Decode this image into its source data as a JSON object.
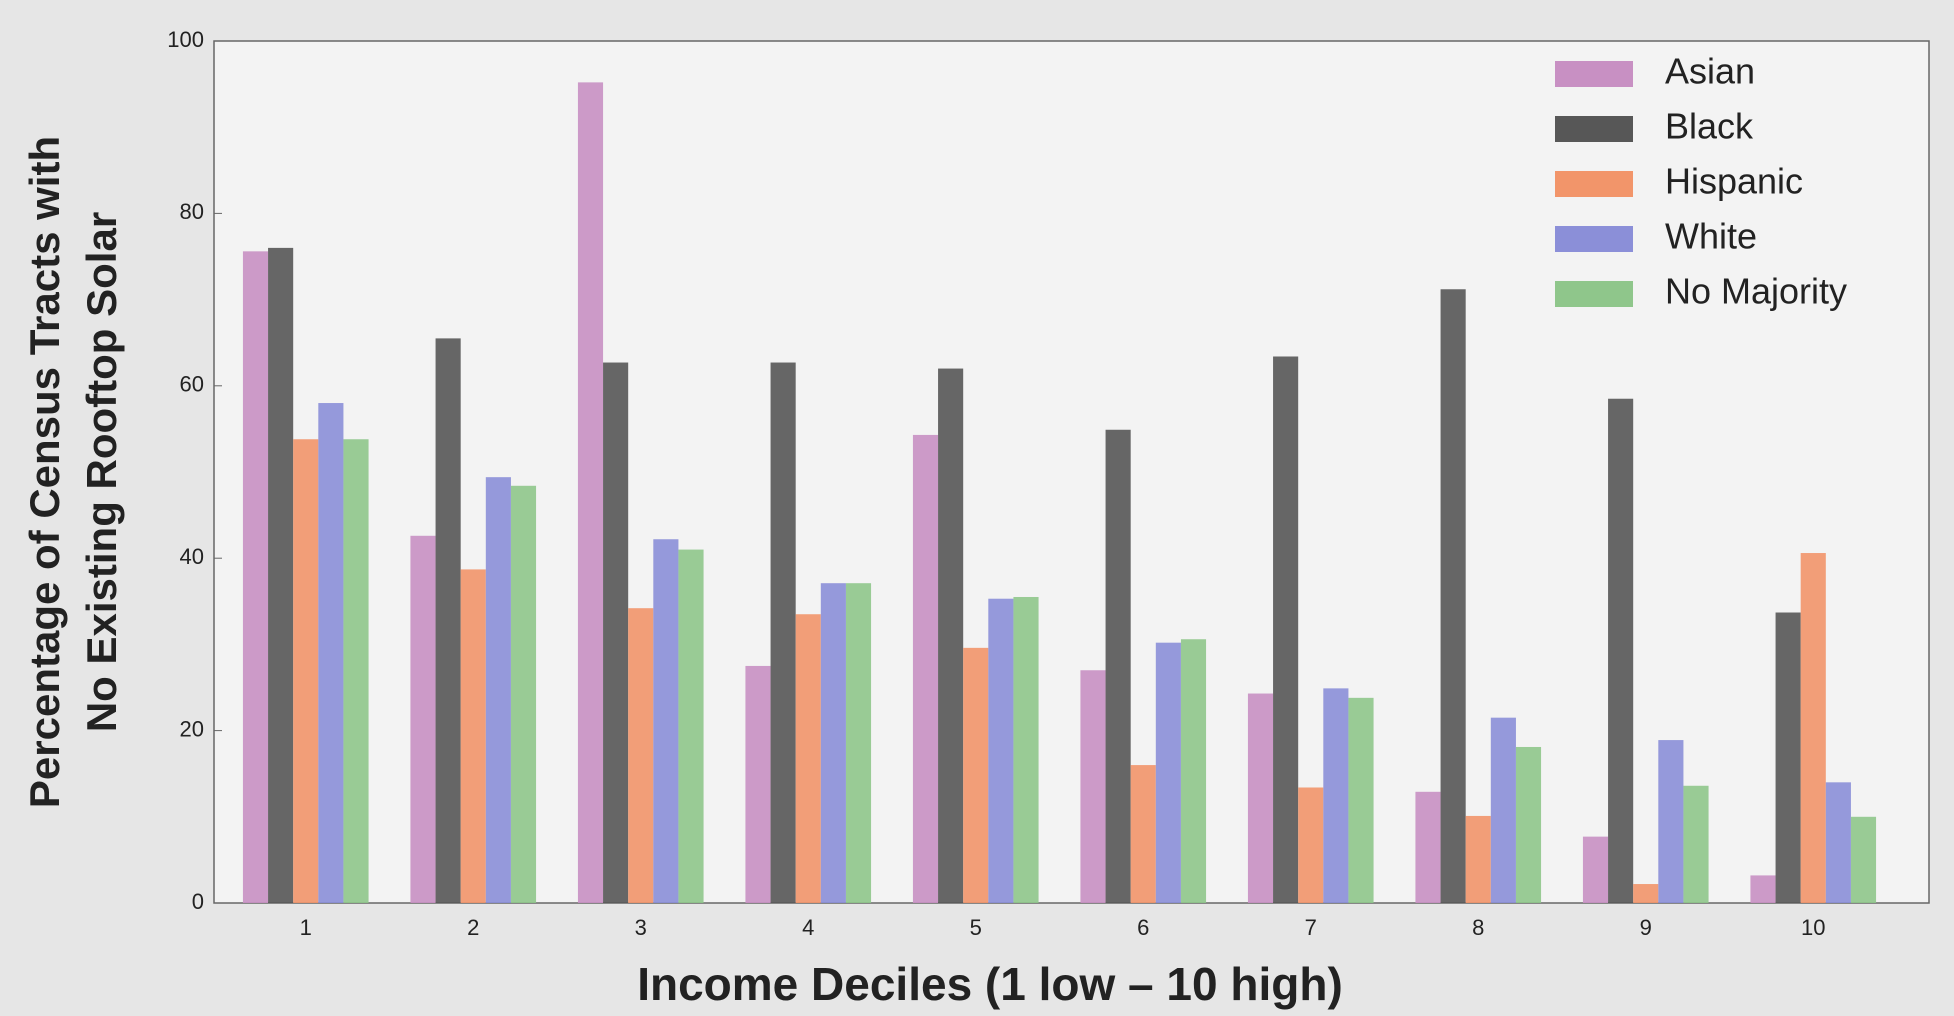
{
  "chart_data": {
    "type": "bar",
    "xlabel": "Income Deciles (1 low – 10 high)",
    "ylabel": [
      "Percentage of Census Tracts with",
      "No Existing Rooftop Solar"
    ],
    "categories": [
      "1",
      "2",
      "3",
      "4",
      "5",
      "6",
      "7",
      "8",
      "9",
      "10"
    ],
    "series": [
      {
        "name": "Asian",
        "color": "#c890c3",
        "values": [
          75.6,
          42.6,
          95.2,
          27.5,
          54.3,
          27,
          24.3,
          12.9,
          7.7,
          3.2
        ]
      },
      {
        "name": "Black",
        "color": "#575757",
        "values": [
          76,
          65.5,
          62.7,
          62.7,
          62,
          54.9,
          63.4,
          71.2,
          58.5,
          33.7
        ]
      },
      {
        "name": "Hispanic",
        "color": "#f2956a",
        "values": [
          53.8,
          38.7,
          34.2,
          33.5,
          29.6,
          16,
          13.4,
          10.1,
          2.2,
          40.6
        ]
      },
      {
        "name": "White",
        "color": "#8b8fd8",
        "values": [
          58,
          49.4,
          42.2,
          37.1,
          35.3,
          30.2,
          24.9,
          21.5,
          18.9,
          14
        ]
      },
      {
        "name": "No Majority",
        "color": "#8fc68b",
        "values": [
          53.8,
          48.4,
          41,
          37.1,
          35.5,
          30.6,
          23.8,
          18.1,
          13.6,
          10
        ]
      }
    ],
    "ylim": [
      0,
      100
    ],
    "yticks": [
      0,
      20,
      40,
      60,
      80,
      100
    ],
    "legend": "upper right"
  }
}
